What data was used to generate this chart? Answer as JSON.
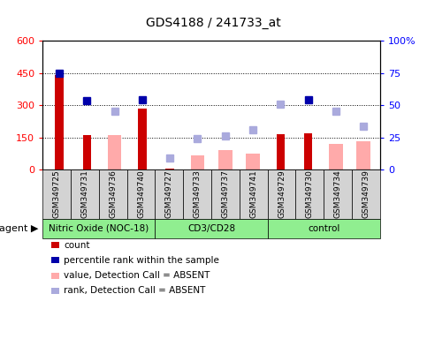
{
  "title": "GDS4188 / 241733_at",
  "samples": [
    "GSM349725",
    "GSM349731",
    "GSM349736",
    "GSM349740",
    "GSM349727",
    "GSM349733",
    "GSM349737",
    "GSM349741",
    "GSM349729",
    "GSM349730",
    "GSM349734",
    "GSM349739"
  ],
  "groups": [
    {
      "label": "Nitric Oxide (NOC-18)",
      "start": 0,
      "end": 4,
      "color": "#90ee90"
    },
    {
      "label": "CD3/CD28",
      "start": 4,
      "end": 8,
      "color": "#90ee90"
    },
    {
      "label": "control",
      "start": 8,
      "end": 12,
      "color": "#90ee90"
    }
  ],
  "count_values": [
    440,
    160,
    null,
    285,
    5,
    null,
    null,
    null,
    165,
    170,
    null,
    null
  ],
  "absent_bar_values": [
    null,
    null,
    160,
    null,
    null,
    65,
    90,
    75,
    null,
    null,
    120,
    130
  ],
  "percentile_rank_left": [
    450,
    320,
    null,
    325,
    null,
    null,
    null,
    null,
    null,
    325,
    null,
    null
  ],
  "absent_rank_left": [
    null,
    null,
    270,
    null,
    55,
    145,
    155,
    185,
    305,
    null,
    270,
    200
  ],
  "ylim_left": [
    0,
    600
  ],
  "ylim_right": [
    0,
    100
  ],
  "yticks_left": [
    0,
    150,
    300,
    450,
    600
  ],
  "ytick_labels_left": [
    "0",
    "150",
    "300",
    "450",
    "600"
  ],
  "ytick_labels_right": [
    "0",
    "25",
    "50",
    "75",
    "100%"
  ],
  "count_color": "#cc0000",
  "absent_bar_color": "#ffaaaa",
  "percentile_color": "#0000aa",
  "absent_rank_color": "#aaaadd",
  "legend": [
    {
      "label": "count",
      "color": "#cc0000"
    },
    {
      "label": "percentile rank within the sample",
      "color": "#0000aa"
    },
    {
      "label": "value, Detection Call = ABSENT",
      "color": "#ffaaaa"
    },
    {
      "label": "rank, Detection Call = ABSENT",
      "color": "#aaaadd"
    }
  ]
}
